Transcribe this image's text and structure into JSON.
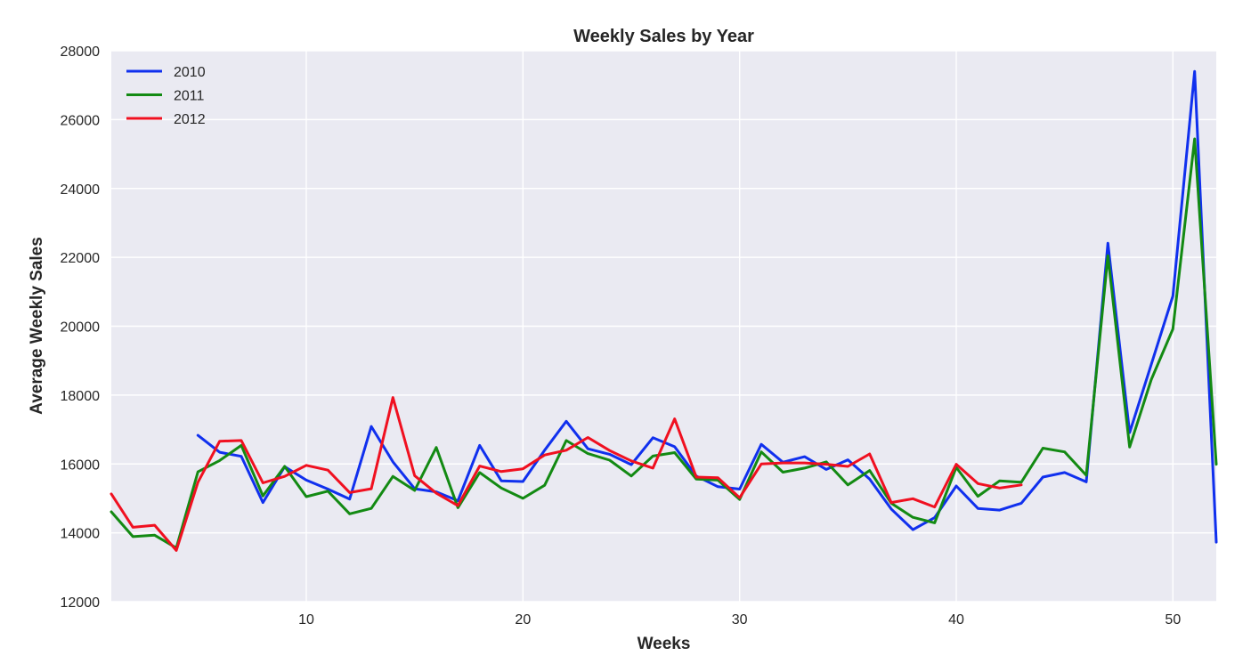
{
  "chart_data": {
    "type": "line",
    "title": "Weekly Sales by Year",
    "xlabel": "Weeks",
    "ylabel": "Average Weekly Sales",
    "xlim": [
      1,
      52
    ],
    "ylim": [
      12000,
      28000
    ],
    "xticks": [
      10,
      20,
      30,
      40,
      50
    ],
    "yticks": [
      12000,
      14000,
      16000,
      18000,
      20000,
      22000,
      24000,
      26000,
      28000
    ],
    "grid": true,
    "legend_position": "top-left",
    "background_color": "#eaeaf2",
    "series": [
      {
        "name": "2010",
        "color": "#1030ee",
        "x": [
          5,
          6,
          7,
          8,
          9,
          10,
          11,
          12,
          13,
          14,
          15,
          16,
          17,
          18,
          19,
          20,
          21,
          22,
          23,
          24,
          25,
          26,
          27,
          28,
          29,
          30,
          31,
          32,
          33,
          34,
          35,
          36,
          37,
          38,
          39,
          40,
          41,
          42,
          43,
          44,
          45,
          46,
          47,
          48,
          49,
          50,
          51,
          52
        ],
        "y": [
          16830,
          16340,
          16220,
          14880,
          15920,
          15530,
          15270,
          14980,
          17090,
          16060,
          15280,
          15190,
          14930,
          16540,
          15510,
          15490,
          16400,
          17240,
          16440,
          16280,
          15980,
          16760,
          16500,
          15650,
          15340,
          15270,
          16570,
          16050,
          16210,
          15840,
          16120,
          15560,
          14690,
          14090,
          14440,
          15360,
          14710,
          14660,
          14860,
          15620,
          15750,
          15480,
          22410,
          16910,
          18890,
          20880,
          27400,
          13730
        ]
      },
      {
        "name": "2011",
        "color": "#138a13",
        "x": [
          1,
          2,
          3,
          4,
          5,
          6,
          7,
          8,
          9,
          10,
          11,
          12,
          13,
          14,
          15,
          16,
          17,
          18,
          19,
          20,
          21,
          22,
          23,
          24,
          25,
          26,
          27,
          28,
          29,
          30,
          31,
          32,
          33,
          34,
          35,
          36,
          37,
          38,
          39,
          40,
          41,
          42,
          43,
          44,
          45,
          46,
          47,
          48,
          49,
          50,
          51,
          52
        ],
        "y": [
          14610,
          13890,
          13930,
          13560,
          15770,
          16100,
          16540,
          15070,
          15930,
          15050,
          15210,
          14550,
          14710,
          15640,
          15230,
          16480,
          14730,
          15750,
          15300,
          15000,
          15380,
          16680,
          16300,
          16110,
          15650,
          16230,
          16330,
          15560,
          15530,
          14970,
          16350,
          15760,
          15880,
          16060,
          15390,
          15810,
          14860,
          14450,
          14290,
          15900,
          15060,
          15510,
          15470,
          16460,
          16350,
          15670,
          22050,
          16490,
          18450,
          19920,
          25440,
          15990
        ]
      },
      {
        "name": "2012",
        "color": "#f01020",
        "x": [
          1,
          2,
          3,
          4,
          5,
          6,
          7,
          8,
          9,
          10,
          11,
          12,
          13,
          14,
          15,
          16,
          17,
          18,
          19,
          20,
          21,
          22,
          23,
          24,
          25,
          26,
          27,
          28,
          29,
          30,
          31,
          32,
          33,
          34,
          35,
          36,
          37,
          38,
          39,
          40,
          41,
          42,
          43
        ],
        "y": [
          15130,
          14160,
          14220,
          13490,
          15470,
          16660,
          16680,
          15450,
          15640,
          15960,
          15820,
          15170,
          15280,
          17930,
          15660,
          15150,
          14790,
          15940,
          15780,
          15860,
          16260,
          16400,
          16770,
          16390,
          16090,
          15880,
          17310,
          15620,
          15600,
          15020,
          16000,
          16030,
          16030,
          15990,
          15930,
          16290,
          14880,
          14990,
          14750,
          15990,
          15430,
          15300,
          15390
        ]
      }
    ]
  }
}
